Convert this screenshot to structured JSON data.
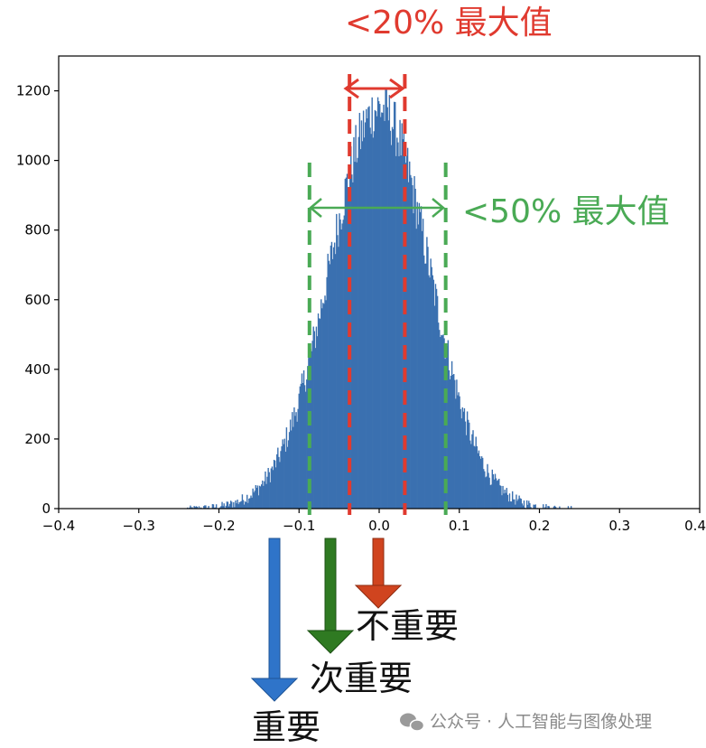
{
  "chart_data": {
    "type": "bar",
    "title": "",
    "xlabel": "",
    "ylabel": "",
    "xlim": [
      -0.4,
      0.4
    ],
    "ylim": [
      0,
      1300
    ],
    "x_ticks": [
      -0.4,
      -0.3,
      -0.2,
      -0.1,
      0.0,
      0.1,
      0.2,
      0.3,
      0.4
    ],
    "x_tick_labels": [
      "−0.4",
      "−0.3",
      "−0.2",
      "−0.1",
      "0.0",
      "0.1",
      "0.2",
      "0.3",
      "0.4"
    ],
    "y_ticks": [
      0,
      200,
      400,
      600,
      800,
      1000,
      1200
    ],
    "y_tick_labels": [
      "0",
      "200",
      "400",
      "600",
      "800",
      "1000",
      "1200"
    ],
    "bar_color": "#3a70b0",
    "distribution": {
      "shape": "bell",
      "center": 0.0,
      "peak_count": 1150,
      "std": 0.062,
      "bins": 400
    },
    "grid": false,
    "threshold_lines": [
      {
        "x": -0.037,
        "color": "#e03a2f"
      },
      {
        "x": 0.032,
        "color": "#e03a2f"
      },
      {
        "x": -0.087,
        "color": "#4aaa55"
      },
      {
        "x": 0.083,
        "color": "#4aaa55"
      }
    ],
    "annotations": {
      "red_label": "<20% 最大值",
      "green_label": "<50% 最大值",
      "arrow_labels": [
        "不重要",
        "次重要",
        "重要"
      ]
    }
  },
  "colors": {
    "red": "#e03a2f",
    "green": "#4aaa55",
    "blue_arrow": "#2f74c9",
    "green_arrow": "#2f7a22",
    "orange_arrow": "#d0441f"
  },
  "watermark": {
    "text": "公众号 · 人工智能与图像处理",
    "icon": "wechat-icon"
  }
}
